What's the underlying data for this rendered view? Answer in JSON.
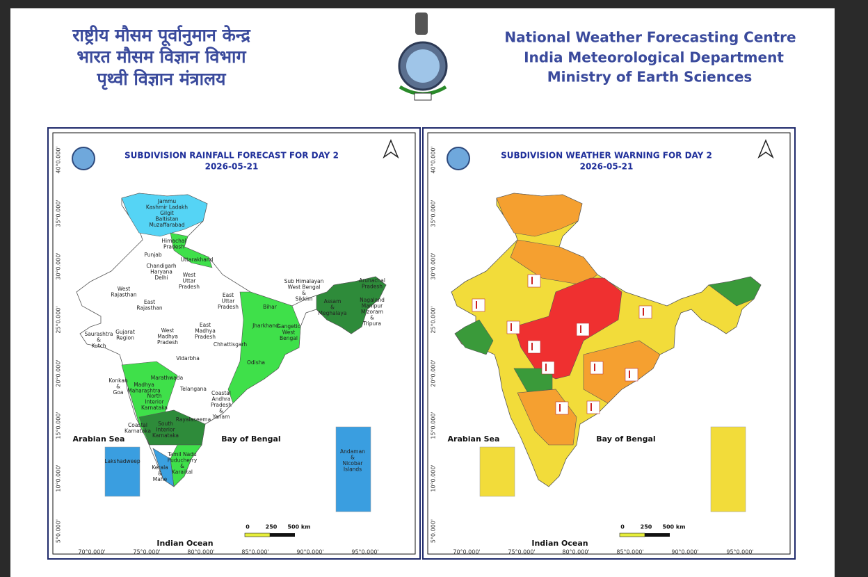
{
  "header": {
    "hindi": [
      "राष्ट्रीय मौसम पूर्वानुमान केन्द्र",
      "भारत मौसम विज्ञान विभाग",
      "पृथ्वी विज्ञान मंत्रालय"
    ],
    "english": [
      "National Weather Forecasting Centre",
      "India Meteorological Department",
      "Ministry of Earth Sciences"
    ]
  },
  "maps": [
    {
      "title": "SUBDIVISION RAINFALL FORECAST FOR DAY 2",
      "date": "2026-05-21",
      "seas": [
        "Arabian Sea",
        "Bay of Bengal",
        "Indian Ocean"
      ],
      "lat_labels": [
        "40°0.000'",
        "35°0.000'",
        "30°0.000'",
        "25°0.000'",
        "20°0.000'",
        "15°0.000'",
        "10°0.000'",
        "5°0.000'"
      ],
      "lon_labels": [
        "70°0.000'",
        "75°0.000'",
        "80°0.000'",
        "85°0.000'",
        "90°0.000'",
        "95°0.000'"
      ],
      "scale_labels": [
        "0",
        "250",
        "500 km"
      ],
      "regions": [
        [
          "Jammu",
          "Kashmir Ladakh",
          "Gilgit",
          "Baltistan",
          "Muzaffarabad"
        ],
        [
          "Himachal",
          "Pradesh"
        ],
        [
          "Punjab"
        ],
        [
          "Uttarakhand"
        ],
        [
          "Chandigarh",
          "Haryana",
          "Delhi"
        ],
        [
          "West",
          "Uttar",
          "Pradesh"
        ],
        [
          "West",
          "Rajasthan"
        ],
        [
          "East",
          "Uttar",
          "Pradesh"
        ],
        [
          "East",
          "Rajasthan"
        ],
        [
          "Bihar"
        ],
        [
          "Sub Himalayan",
          "West Bengal",
          "&",
          "Sikkim"
        ],
        [
          "Arunachal",
          "Pradesh"
        ],
        [
          "Assam",
          "&",
          "Meghalaya"
        ],
        [
          "Nagaland",
          "Manipur",
          "Mizoram",
          "&",
          "Tripura"
        ],
        [
          "Jharkhand"
        ],
        [
          "Gangetic",
          "West",
          "Bengal"
        ],
        [
          "Saurashtra",
          "&",
          "Kutch"
        ],
        [
          "Gujarat",
          "Region"
        ],
        [
          "West",
          "Madhya",
          "Pradesh"
        ],
        [
          "East",
          "Madhya",
          "Pradesh"
        ],
        [
          "Chhattisgarh"
        ],
        [
          "Odisha"
        ],
        [
          "Vidarbha"
        ],
        [
          "Marathwada"
        ],
        [
          "Konkan",
          "&",
          "Goa"
        ],
        [
          "Madhya",
          "Maharashtra"
        ],
        [
          "Telangana"
        ],
        [
          "North",
          "Interior",
          "Karnataka"
        ],
        [
          "Coastal",
          "Andhra",
          "Pradesh",
          "&",
          "Yanam"
        ],
        [
          "Rayalaseema"
        ],
        [
          "Coastal",
          "Karnataka"
        ],
        [
          "South",
          "Interior",
          "Karnataka"
        ],
        [
          "Tamil Nadu",
          "Puducherry",
          "&",
          "Karaikal"
        ],
        [
          "Kerala",
          "&",
          "Mahe"
        ],
        [
          "Lakshadweep"
        ],
        [
          "Andaman",
          "&",
          "Nicobar",
          "Islands"
        ]
      ]
    },
    {
      "title": "SUBDIVISION WEATHER WARNING FOR DAY 2",
      "date": "2026-05-21",
      "seas": [
        "Arabian Sea",
        "Bay of Bengal",
        "Indian Ocean"
      ],
      "lat_labels": [
        "40°0.000'",
        "35°0.000'",
        "30°0.000'",
        "25°0.000'",
        "20°0.000'",
        "15°0.000'",
        "10°0.000'",
        "5°0.000'"
      ],
      "lon_labels": [
        "70°0.000'",
        "75°0.000'",
        "80°0.000'",
        "85°0.000'",
        "90°0.000'",
        "95°0.000'"
      ],
      "scale_labels": [
        "0",
        "250",
        "500 km"
      ]
    }
  ]
}
